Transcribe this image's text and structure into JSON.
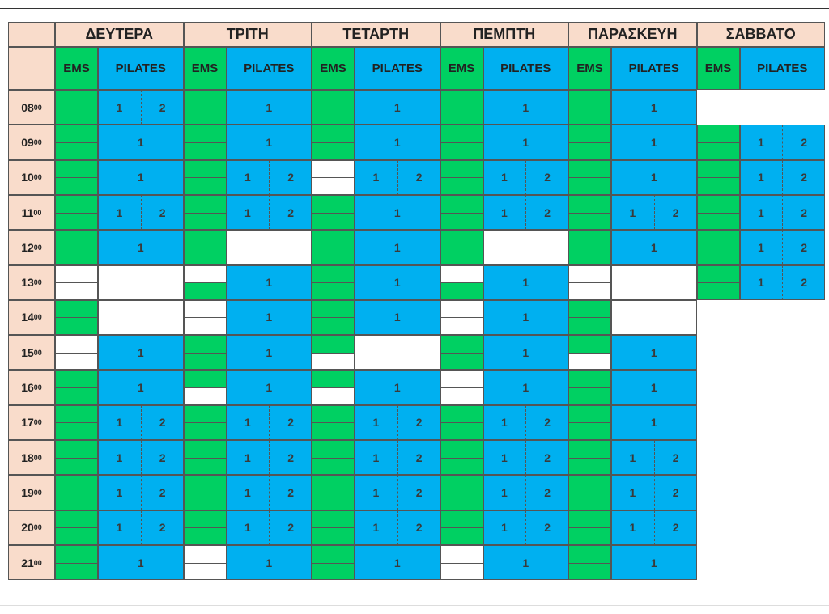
{
  "days": [
    "ΔΕΥΤΕΡΑ",
    "ΤΡΙΤΗ",
    "ΤΕΤΑΡΤΗ",
    "ΠΕΜΠΤΗ",
    "ΠΑΡΑΣΚΕΥΗ",
    "ΣΑΒΒΑΤΟ"
  ],
  "subheaders": [
    "EMS",
    "PILATES"
  ],
  "colors": {
    "header": "#f9dccb",
    "ems": "#00d062",
    "pilates": "#00b0f0",
    "empty": "#ffffff"
  },
  "rows": [
    {
      "hour": "08",
      "min": "00",
      "cells": [
        {
          "ems": [
            "#00d062",
            "#00d062"
          ],
          "pilates": [
            "1",
            "2"
          ]
        },
        {
          "ems": [
            "#00d062",
            "#00d062"
          ],
          "pilates": [
            "1"
          ]
        },
        {
          "ems": [
            "#00d062",
            "#00d062"
          ],
          "pilates": [
            "1"
          ]
        },
        {
          "ems": [
            "#00d062",
            "#00d062"
          ],
          "pilates": [
            "1"
          ]
        },
        {
          "ems": [
            "#00d062",
            "#00d062"
          ],
          "pilates": [
            "1"
          ]
        },
        null
      ]
    },
    {
      "hour": "09",
      "min": "00",
      "cells": [
        {
          "ems": [
            "#00d062",
            "#00d062"
          ],
          "pilates": [
            "1"
          ]
        },
        {
          "ems": [
            "#00d062",
            "#00d062"
          ],
          "pilates": [
            "1"
          ]
        },
        {
          "ems": [
            "#00d062",
            "#00d062"
          ],
          "pilates": [
            "1"
          ]
        },
        {
          "ems": [
            "#00d062",
            "#00d062"
          ],
          "pilates": [
            "1"
          ]
        },
        {
          "ems": [
            "#00d062",
            "#00d062"
          ],
          "pilates": [
            "1"
          ]
        },
        {
          "ems": [
            "#00d062",
            "#00d062"
          ],
          "pilates": [
            "1",
            "2"
          ]
        }
      ]
    },
    {
      "hour": "10",
      "min": "00",
      "cells": [
        {
          "ems": [
            "#00d062",
            "#00d062"
          ],
          "pilates": [
            "1"
          ]
        },
        {
          "ems": [
            "#00d062",
            "#00d062"
          ],
          "pilates": [
            "1",
            "2"
          ]
        },
        {
          "ems": [
            "#ffffff",
            "#ffffff"
          ],
          "pilates": [
            "1",
            "2"
          ]
        },
        {
          "ems": [
            "#00d062",
            "#00d062"
          ],
          "pilates": [
            "1",
            "2"
          ]
        },
        {
          "ems": [
            "#00d062",
            "#00d062"
          ],
          "pilates": [
            "1"
          ]
        },
        {
          "ems": [
            "#00d062",
            "#00d062"
          ],
          "pilates": [
            "1",
            "2"
          ]
        }
      ]
    },
    {
      "hour": "11",
      "min": "00",
      "cells": [
        {
          "ems": [
            "#00d062",
            "#00d062"
          ],
          "pilates": [
            "1",
            "2"
          ]
        },
        {
          "ems": [
            "#00d062",
            "#00d062"
          ],
          "pilates": [
            "1",
            "2"
          ]
        },
        {
          "ems": [
            "#00d062",
            "#00d062"
          ],
          "pilates": [
            "1"
          ]
        },
        {
          "ems": [
            "#00d062",
            "#00d062"
          ],
          "pilates": [
            "1",
            "2"
          ]
        },
        {
          "ems": [
            "#00d062",
            "#00d062"
          ],
          "pilates": [
            "1",
            "2"
          ]
        },
        {
          "ems": [
            "#00d062",
            "#00d062"
          ],
          "pilates": [
            "1",
            "2"
          ]
        }
      ]
    },
    {
      "hour": "12",
      "min": "00",
      "cells": [
        {
          "ems": [
            "#00d062",
            "#00d062"
          ],
          "pilates": [
            "1"
          ]
        },
        {
          "ems": [
            "#00d062",
            "#00d062"
          ],
          "pilates": []
        },
        {
          "ems": [
            "#00d062",
            "#00d062"
          ],
          "pilates": [
            "1"
          ]
        },
        {
          "ems": [
            "#00d062",
            "#00d062"
          ],
          "pilates": []
        },
        {
          "ems": [
            "#00d062",
            "#00d062"
          ],
          "pilates": [
            "1"
          ]
        },
        {
          "ems": [
            "#00d062",
            "#00d062"
          ],
          "pilates": [
            "1",
            "2"
          ]
        }
      ]
    },
    {
      "hour": "13",
      "min": "00",
      "cells": [
        {
          "ems": [
            "#ffffff",
            "#ffffff"
          ],
          "pilates": []
        },
        {
          "ems": [
            "#ffffff",
            "#00d062"
          ],
          "pilates": [
            "1"
          ]
        },
        {
          "ems": [
            "#00d062",
            "#00d062"
          ],
          "pilates": [
            "1"
          ]
        },
        {
          "ems": [
            "#ffffff",
            "#00d062"
          ],
          "pilates": [
            "1"
          ]
        },
        {
          "ems": [
            "#ffffff",
            "#ffffff"
          ],
          "pilates": []
        },
        {
          "ems": [
            "#00d062",
            "#00d062"
          ],
          "pilates": [
            "1",
            "2"
          ]
        }
      ]
    },
    {
      "hour": "14",
      "min": "00",
      "cells": [
        {
          "ems": [
            "#00d062",
            "#00d062"
          ],
          "pilates": []
        },
        {
          "ems": [
            "#ffffff",
            "#ffffff"
          ],
          "pilates": [
            "1"
          ]
        },
        {
          "ems": [
            "#00d062",
            "#00d062"
          ],
          "pilates": [
            "1"
          ]
        },
        {
          "ems": [
            "#ffffff",
            "#ffffff"
          ],
          "pilates": [
            "1"
          ]
        },
        {
          "ems": [
            "#00d062",
            "#00d062"
          ],
          "pilates": []
        },
        null
      ]
    },
    {
      "hour": "15",
      "min": "00",
      "cells": [
        {
          "ems": [
            "#ffffff",
            "#ffffff"
          ],
          "pilates": [
            "1"
          ]
        },
        {
          "ems": [
            "#00d062",
            "#00d062"
          ],
          "pilates": [
            "1"
          ]
        },
        {
          "ems": [
            "#00d062",
            "#ffffff"
          ],
          "pilates": []
        },
        {
          "ems": [
            "#00d062",
            "#00d062"
          ],
          "pilates": [
            "1"
          ]
        },
        {
          "ems": [
            "#00d062",
            "#ffffff"
          ],
          "pilates": [
            "1"
          ]
        },
        null
      ]
    },
    {
      "hour": "16",
      "min": "00",
      "cells": [
        {
          "ems": [
            "#00d062",
            "#00d062"
          ],
          "pilates": [
            "1"
          ]
        },
        {
          "ems": [
            "#00d062",
            "#ffffff"
          ],
          "pilates": [
            "1"
          ]
        },
        {
          "ems": [
            "#00d062",
            "#ffffff"
          ],
          "pilates": [
            "1"
          ]
        },
        {
          "ems": [
            "#ffffff",
            "#ffffff"
          ],
          "pilates": [
            "1"
          ]
        },
        {
          "ems": [
            "#00d062",
            "#00d062"
          ],
          "pilates": [
            "1"
          ]
        },
        null
      ]
    },
    {
      "hour": "17",
      "min": "00",
      "cells": [
        {
          "ems": [
            "#00d062",
            "#00d062"
          ],
          "pilates": [
            "1",
            "2"
          ]
        },
        {
          "ems": [
            "#00d062",
            "#00d062"
          ],
          "pilates": [
            "1",
            "2"
          ]
        },
        {
          "ems": [
            "#00d062",
            "#00d062"
          ],
          "pilates": [
            "1",
            "2"
          ]
        },
        {
          "ems": [
            "#00d062",
            "#00d062"
          ],
          "pilates": [
            "1",
            "2"
          ]
        },
        {
          "ems": [
            "#00d062",
            "#00d062"
          ],
          "pilates": [
            "1"
          ]
        },
        null
      ]
    },
    {
      "hour": "18",
      "min": "00",
      "cells": [
        {
          "ems": [
            "#00d062",
            "#00d062"
          ],
          "pilates": [
            "1",
            "2"
          ]
        },
        {
          "ems": [
            "#00d062",
            "#00d062"
          ],
          "pilates": [
            "1",
            "2"
          ]
        },
        {
          "ems": [
            "#00d062",
            "#00d062"
          ],
          "pilates": [
            "1",
            "2"
          ]
        },
        {
          "ems": [
            "#00d062",
            "#00d062"
          ],
          "pilates": [
            "1",
            "2"
          ]
        },
        {
          "ems": [
            "#00d062",
            "#00d062"
          ],
          "pilates": [
            "1",
            "2"
          ]
        },
        null
      ]
    },
    {
      "hour": "19",
      "min": "00",
      "cells": [
        {
          "ems": [
            "#00d062",
            "#00d062"
          ],
          "pilates": [
            "1",
            "2"
          ]
        },
        {
          "ems": [
            "#00d062",
            "#00d062"
          ],
          "pilates": [
            "1",
            "2"
          ]
        },
        {
          "ems": [
            "#00d062",
            "#00d062"
          ],
          "pilates": [
            "1",
            "2"
          ]
        },
        {
          "ems": [
            "#00d062",
            "#00d062"
          ],
          "pilates": [
            "1",
            "2"
          ]
        },
        {
          "ems": [
            "#00d062",
            "#00d062"
          ],
          "pilates": [
            "1",
            "2"
          ]
        },
        null
      ]
    },
    {
      "hour": "20",
      "min": "00",
      "cells": [
        {
          "ems": [
            "#00d062",
            "#00d062"
          ],
          "pilates": [
            "1",
            "2"
          ]
        },
        {
          "ems": [
            "#00d062",
            "#00d062"
          ],
          "pilates": [
            "1",
            "2"
          ]
        },
        {
          "ems": [
            "#00d062",
            "#00d062"
          ],
          "pilates": [
            "1",
            "2"
          ]
        },
        {
          "ems": [
            "#00d062",
            "#00d062"
          ],
          "pilates": [
            "1",
            "2"
          ]
        },
        {
          "ems": [
            "#00d062",
            "#00d062"
          ],
          "pilates": [
            "1",
            "2"
          ]
        },
        null
      ]
    },
    {
      "hour": "21",
      "min": "00",
      "cells": [
        {
          "ems": [
            "#00d062",
            "#00d062"
          ],
          "pilates": [
            "1"
          ]
        },
        {
          "ems": [
            "#ffffff",
            "#ffffff"
          ],
          "pilates": [
            "1"
          ]
        },
        {
          "ems": [
            "#00d062",
            "#00d062"
          ],
          "pilates": [
            "1"
          ]
        },
        {
          "ems": [
            "#ffffff",
            "#ffffff"
          ],
          "pilates": [
            "1"
          ]
        },
        {
          "ems": [
            "#00d062",
            "#00d062"
          ],
          "pilates": [
            "1"
          ]
        },
        null
      ]
    }
  ]
}
